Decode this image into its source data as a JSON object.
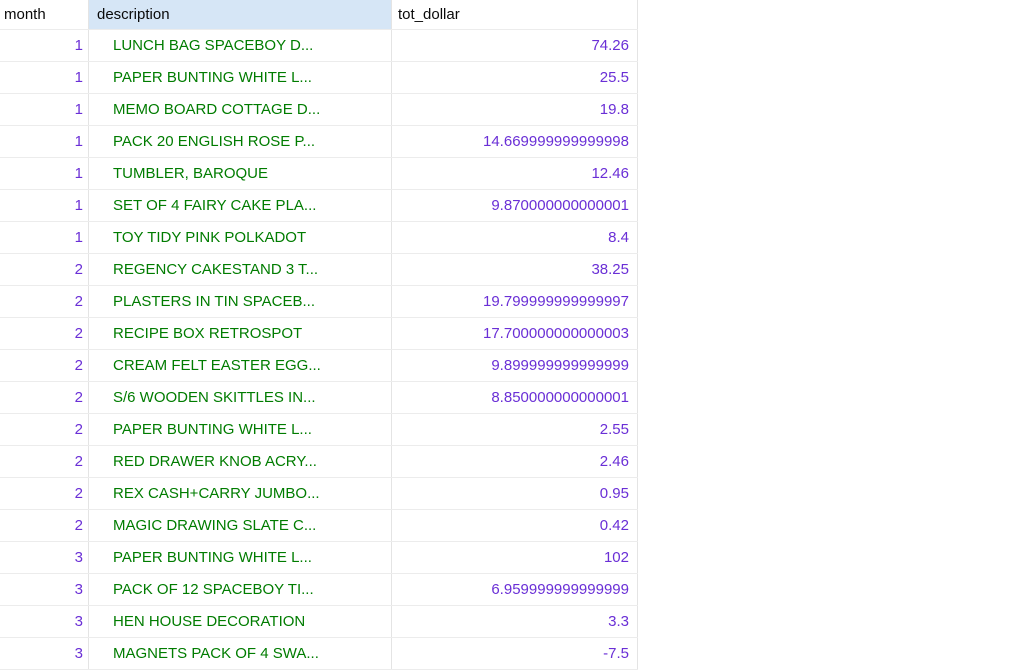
{
  "colors": {
    "header_selected_bg": "#d6e6f6",
    "grid_line_horizontal": "#ececec",
    "grid_line_vertical": "#e4e4e4",
    "number_text": "#6a2fd6",
    "description_text": "#007c00",
    "header_text": "#0a0a0a"
  },
  "table": {
    "columns": [
      {
        "key": "month",
        "label": "month",
        "align": "right",
        "selected": false
      },
      {
        "key": "description",
        "label": "description",
        "align": "left",
        "selected": true
      },
      {
        "key": "tot_dollar",
        "label": "tot_dollar",
        "align": "right",
        "selected": false
      }
    ],
    "rows": [
      [
        "1",
        "LUNCH BAG SPACEBOY D...",
        "74.26"
      ],
      [
        "1",
        "PAPER BUNTING WHITE L...",
        "25.5"
      ],
      [
        "1",
        "MEMO BOARD COTTAGE D...",
        "19.8"
      ],
      [
        "1",
        "PACK 20 ENGLISH ROSE P...",
        "14.669999999999998"
      ],
      [
        "1",
        "TUMBLER, BAROQUE",
        "12.46"
      ],
      [
        "1",
        "SET OF 4 FAIRY CAKE PLA...",
        "9.870000000000001"
      ],
      [
        "1",
        "TOY TIDY PINK POLKADOT",
        "8.4"
      ],
      [
        "2",
        "REGENCY CAKESTAND 3 T...",
        "38.25"
      ],
      [
        "2",
        "PLASTERS IN TIN SPACEB...",
        "19.799999999999997"
      ],
      [
        "2",
        "RECIPE BOX RETROSPOT",
        "17.700000000000003"
      ],
      [
        "2",
        "CREAM FELT EASTER EGG...",
        "9.899999999999999"
      ],
      [
        "2",
        "S/6 WOODEN SKITTLES IN...",
        "8.850000000000001"
      ],
      [
        "2",
        "PAPER BUNTING WHITE L...",
        "2.55"
      ],
      [
        "2",
        "RED DRAWER KNOB ACRY...",
        "2.46"
      ],
      [
        "2",
        "REX CASH+CARRY JUMBO...",
        "0.95"
      ],
      [
        "2",
        "MAGIC DRAWING SLATE C...",
        "0.42"
      ],
      [
        "3",
        "PAPER BUNTING WHITE L...",
        "102"
      ],
      [
        "3",
        "PACK OF 12 SPACEBOY TI...",
        "6.959999999999999"
      ],
      [
        "3",
        "HEN HOUSE DECORATION",
        "3.3"
      ],
      [
        "3",
        "MAGNETS PACK OF 4 SWA...",
        "-7.5"
      ]
    ]
  }
}
